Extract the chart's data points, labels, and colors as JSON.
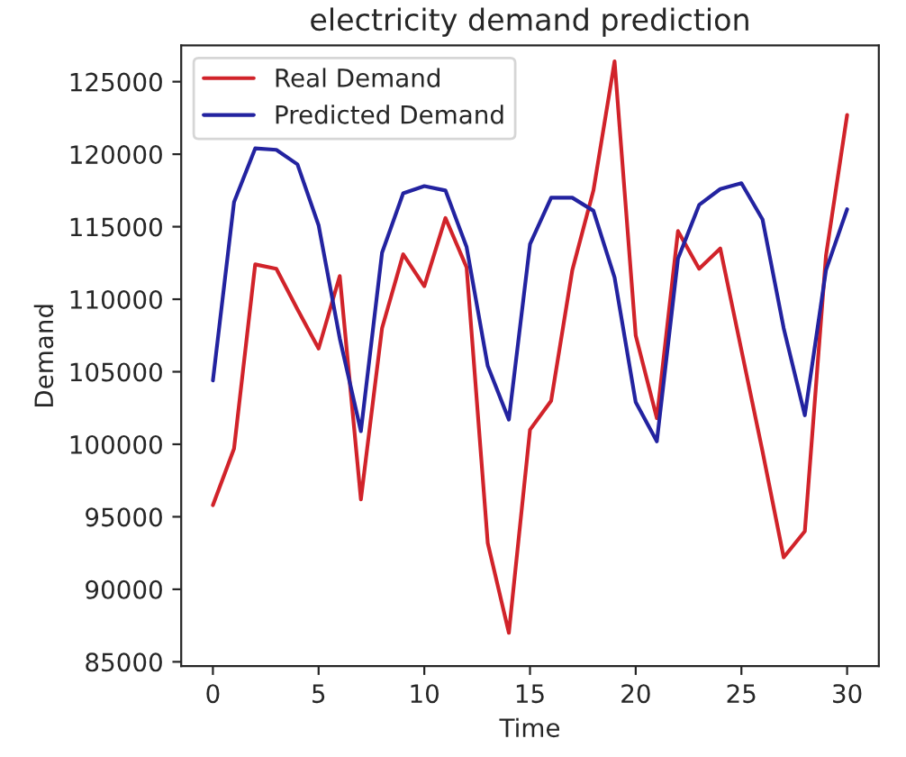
{
  "chart_data": {
    "type": "line",
    "title": "electricity demand prediction",
    "xlabel": "Time",
    "ylabel": "Demand",
    "x": [
      0,
      1,
      2,
      3,
      4,
      5,
      6,
      7,
      8,
      9,
      10,
      11,
      12,
      13,
      14,
      15,
      16,
      17,
      18,
      19,
      20,
      21,
      22,
      23,
      24,
      25,
      26,
      27,
      28,
      29,
      30
    ],
    "series": [
      {
        "name": "Real Demand",
        "color": "#d1232a",
        "values": [
          95800,
          99700,
          112400,
          112100,
          109300,
          106600,
          111600,
          96200,
          108000,
          113100,
          110900,
          115600,
          112200,
          93200,
          87000,
          101000,
          103000,
          112000,
          117500,
          126400,
          107500,
          101800,
          114700,
          112100,
          113500,
          106500,
          99500,
          92200,
          94000,
          113000,
          122700
        ]
      },
      {
        "name": "Predicted Demand",
        "color": "#2323a0",
        "values": [
          104400,
          116700,
          120400,
          120300,
          119300,
          115100,
          107300,
          100900,
          113200,
          117300,
          117800,
          117500,
          113600,
          105400,
          101700,
          113800,
          117000,
          117000,
          116100,
          111500,
          102900,
          100200,
          112800,
          116500,
          117600,
          118000,
          115500,
          108000,
          102000,
          112000,
          116200
        ]
      }
    ],
    "xlim": [
      -1.5,
      31.5
    ],
    "ylim": [
      84700,
      127500
    ],
    "xticks": [
      0,
      5,
      10,
      15,
      20,
      25,
      30
    ],
    "yticks": [
      85000,
      90000,
      95000,
      100000,
      105000,
      110000,
      115000,
      120000,
      125000
    ],
    "legend": "top left",
    "grid": false,
    "marker": "none",
    "line_style": "solid"
  }
}
